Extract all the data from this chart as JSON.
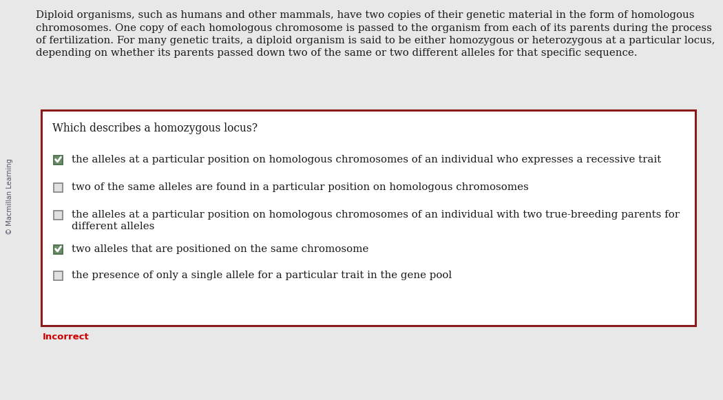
{
  "bg_color": "#e8e8e8",
  "white_bg": "#ffffff",
  "box_bg": "#f5f5f5",
  "paragraph_lines": [
    "Diploid organisms, such as humans and other mammals, have two copies of their genetic material in the form of homologous",
    "chromosomes. One copy of each homologous chromosome is passed to the organism from each of its parents during the process",
    "of fertilization. For many genetic traits, a diploid organism is said to be either homozygous or heterozygous at a particular locus,",
    "depending on whether its parents passed down two of the same or two different alleles for that specific sequence."
  ],
  "watermark_text": "© Macmillan Learning",
  "question_text": "Which describes a homozygous locus?",
  "options": [
    {
      "line1": "the alleles at a particular position on homologous chromosomes of an individual who expresses a recessive trait",
      "line2": null,
      "checked": true
    },
    {
      "line1": "two of the same alleles are found in a particular position on homologous chromosomes",
      "line2": null,
      "checked": false
    },
    {
      "line1": "the alleles at a particular position on homologous chromosomes of an individual with two true-breeding parents for",
      "line2": "different alleles",
      "checked": false
    },
    {
      "line1": "two alleles that are positioned on the same chromosome",
      "line2": null,
      "checked": true
    },
    {
      "line1": "the presence of only a single allele for a particular trait in the gene pool",
      "line2": null,
      "checked": false
    }
  ],
  "incorrect_text": "Incorrect",
  "incorrect_color": "#cc0000",
  "box_border_color": "#8b1a1a",
  "text_color": "#1a1a1a",
  "para_color": "#1a1a1a",
  "watermark_color": "#555566",
  "checkbox_checked_face": "#6b8e6b",
  "checkbox_checked_edge": "#4a6e4a",
  "checkbox_unchecked_face": "#e0e0e0",
  "checkbox_unchecked_edge": "#888888",
  "font_size_para": 10.8,
  "font_size_question": 11.2,
  "font_size_options": 10.8,
  "font_size_incorrect": 9.5,
  "font_size_watermark": 7.2
}
